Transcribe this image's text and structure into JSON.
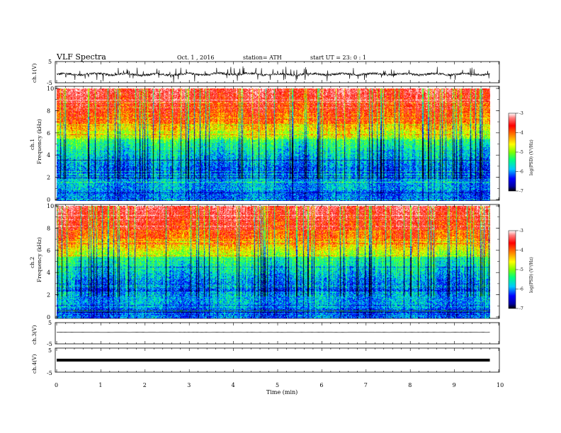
{
  "header": {
    "title": "VLF  Spectra",
    "date": "Oct. 1  , 2016",
    "station": "station= ATH",
    "start": "start  UT  =   23: 0  : 1"
  },
  "x_axis": {
    "label": "Time  (min)",
    "range": [
      0,
      10
    ],
    "ticks": [
      "0",
      "1",
      "2",
      "3",
      "4",
      "5",
      "6",
      "7",
      "8",
      "9",
      "10"
    ],
    "data_end": 9.8
  },
  "ch1_wave": {
    "ylabel": "ch.1(V)",
    "ticks": [
      "5",
      "-5"
    ],
    "ylim": [
      -5,
      5
    ]
  },
  "ch1_spec": {
    "ylabel_channel": "ch.1",
    "ylabel_quantity": "Frequency  (kHz)",
    "yticks": [
      "0",
      "2",
      "4",
      "6",
      "8",
      "10"
    ],
    "ylim": [
      0,
      10
    ]
  },
  "ch2_spec": {
    "ylabel_channel": "ch.2",
    "ylabel_quantity": "Frequency  (kHz)",
    "yticks": [
      "0",
      "2",
      "4",
      "6",
      "8",
      "10"
    ],
    "ylim": [
      0,
      10
    ]
  },
  "ch3_wave": {
    "ylabel": "ch.3(V)",
    "ticks": [
      "5",
      "-5"
    ],
    "ylim": [
      -5,
      5
    ]
  },
  "ch4_wave": {
    "ylabel": "ch.4(V)",
    "ticks": [
      "5",
      "-5"
    ],
    "ylim": [
      -5,
      5
    ]
  },
  "colorbar": {
    "label": "log(PSD) (V²/Hz)",
    "ticks": [
      "-3",
      "-4",
      "-5",
      "-6",
      "-7"
    ],
    "range": [
      -7,
      -3
    ]
  },
  "colors": {
    "psd_scale": [
      "#000000",
      "#0000a0",
      "#0000ff",
      "#00c8ff",
      "#00ff80",
      "#80ff00",
      "#ffff00",
      "#ff8000",
      "#ff0000",
      "#ff8080",
      "#ffffff"
    ]
  },
  "chart_data": [
    {
      "type": "line",
      "name": "ch.1(V)",
      "x_range": [
        0,
        9.8
      ],
      "ylim": [
        -5,
        5
      ],
      "baseline": [
        {
          "x": 0,
          "y": -1.2
        },
        {
          "x": 1,
          "y": -1.0
        },
        {
          "x": 2,
          "y": -1.4
        },
        {
          "x": 3,
          "y": -1.1
        },
        {
          "x": 4,
          "y": -0.9
        },
        {
          "x": 5,
          "y": -1.3
        },
        {
          "x": 6,
          "y": -1.1
        },
        {
          "x": 7,
          "y": -1.0
        },
        {
          "x": 8,
          "y": -1.2
        },
        {
          "x": 9,
          "y": -1.1
        },
        {
          "x": 9.8,
          "y": -1.0
        }
      ]
    },
    {
      "type": "heatmap",
      "name": "ch.1",
      "x_range": [
        0,
        9.8
      ],
      "y_range": [
        0,
        10
      ],
      "value_range": [
        -7,
        -3
      ]
    },
    {
      "type": "heatmap",
      "name": "ch.2",
      "x_range": [
        0,
        9.8
      ],
      "y_range": [
        0,
        10
      ],
      "value_range": [
        -7,
        -3
      ]
    },
    {
      "type": "line",
      "name": "ch.3(V)",
      "x_range": [
        0,
        9.8
      ],
      "ylim": [
        -5,
        5
      ],
      "level": 0.5
    },
    {
      "type": "line",
      "name": "ch.4(V)",
      "x_range": [
        0,
        9.8
      ],
      "ylim": [
        -5,
        5
      ],
      "level": 0.0
    }
  ]
}
